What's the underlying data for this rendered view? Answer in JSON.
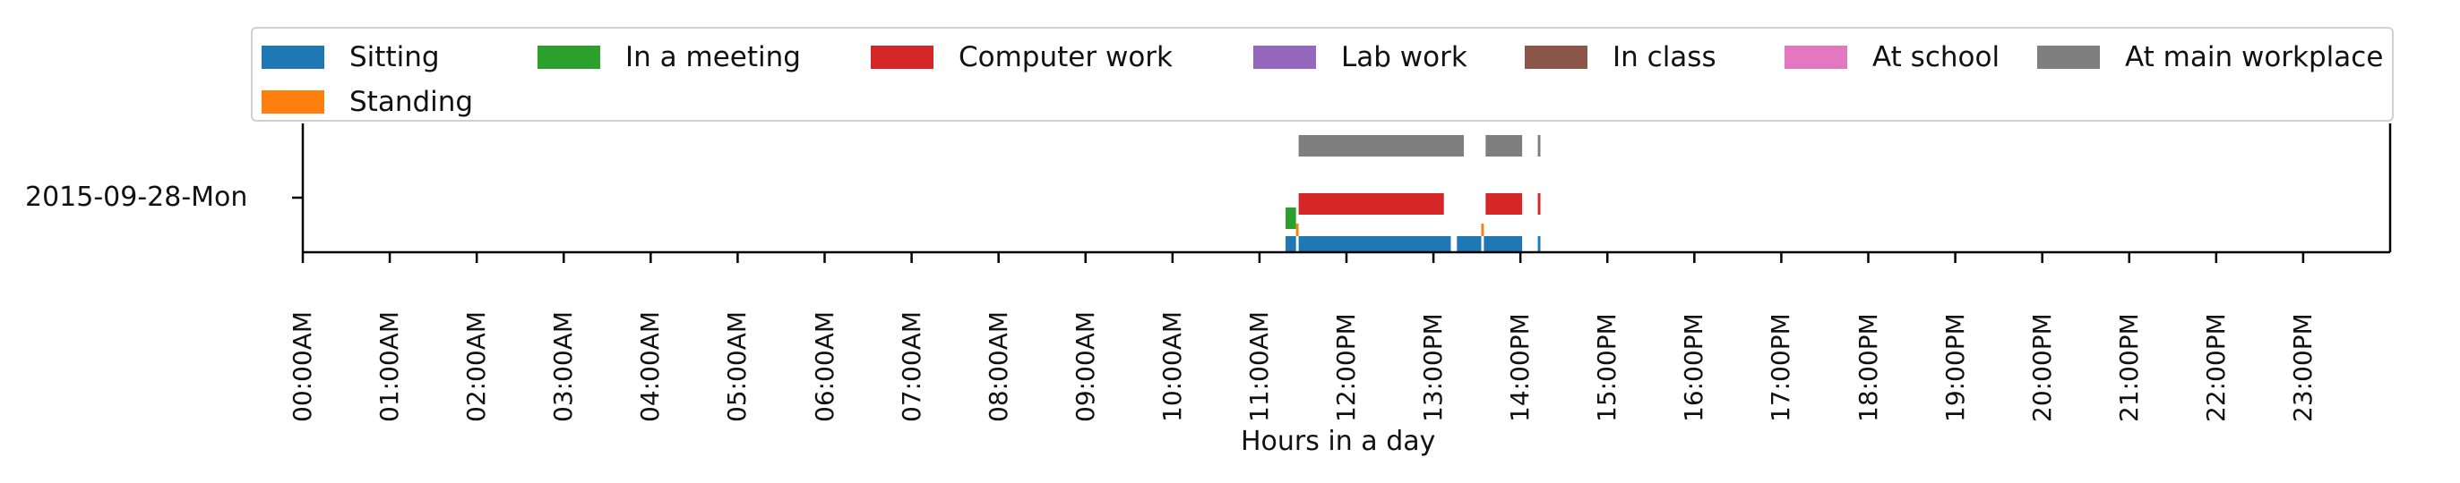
{
  "chart_data": {
    "type": "timeline",
    "xlabel": "Hours in a day",
    "xlim": [
      0,
      24
    ],
    "y_categories": [
      "2015-09-28-Mon"
    ],
    "x_tick_labels": [
      "00:00AM",
      "01:00AM",
      "02:00AM",
      "03:00AM",
      "04:00AM",
      "05:00AM",
      "06:00AM",
      "07:00AM",
      "08:00AM",
      "09:00AM",
      "10:00AM",
      "11:00AM",
      "12:00PM",
      "13:00PM",
      "14:00PM",
      "15:00PM",
      "16:00PM",
      "17:00PM",
      "18:00PM",
      "19:00PM",
      "20:00PM",
      "21:00PM",
      "22:00PM",
      "23:00PM"
    ],
    "legend_placement": "top",
    "series": [
      {
        "name": "Sitting",
        "color": "#1f77b4",
        "intervals": [
          [
            11.3,
            11.42
          ],
          [
            11.45,
            13.2
          ],
          [
            13.27,
            13.55
          ],
          [
            13.58,
            14.02
          ],
          [
            14.2,
            14.23
          ]
        ]
      },
      {
        "name": "Standing",
        "color": "#ff7f0e",
        "intervals": [
          [
            11.42,
            11.45
          ],
          [
            13.55,
            13.58
          ]
        ]
      },
      {
        "name": "In a meeting",
        "color": "#2ca02c",
        "intervals": [
          [
            11.3,
            11.42
          ]
        ]
      },
      {
        "name": "Computer work",
        "color": "#d62728",
        "intervals": [
          [
            11.45,
            13.12
          ],
          [
            13.6,
            14.02
          ],
          [
            14.2,
            14.23
          ]
        ]
      },
      {
        "name": "Lab work",
        "color": "#9467bd",
        "intervals": []
      },
      {
        "name": "In class",
        "color": "#8c564b",
        "intervals": []
      },
      {
        "name": "At school",
        "color": "#e377c2",
        "intervals": []
      },
      {
        "name": "At main workplace",
        "color": "#7f7f7f",
        "intervals": [
          [
            11.45,
            13.35
          ],
          [
            13.6,
            14.02
          ],
          [
            14.2,
            14.23
          ]
        ]
      }
    ]
  }
}
